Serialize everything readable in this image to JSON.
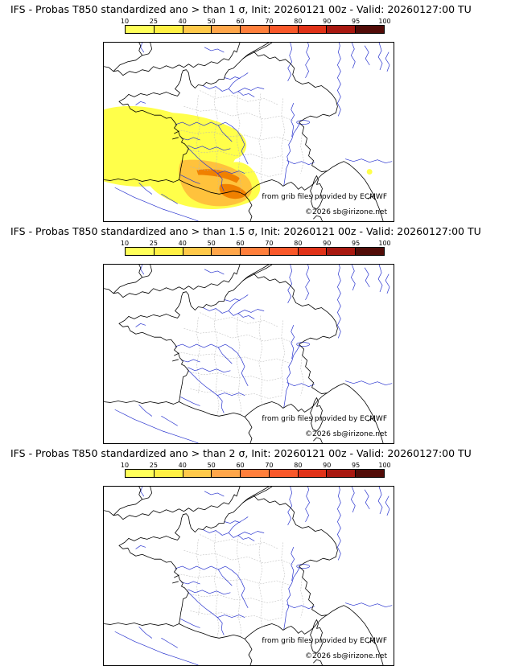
{
  "panels": [
    {
      "title": "IFS - Probas T850  standardized ano > than 1 σ, Init: 20260121 00z - Valid: 20260127:00 TU",
      "has_overlay": true
    },
    {
      "title": "IFS - Probas T850  standardized ano > than 1.5 σ, Init: 20260121 00z - Valid: 20260127:00 TU",
      "has_overlay": false
    },
    {
      "title": "IFS - Probas T850  standardized ano > than 2 σ, Init: 20260121 00z - Valid: 20260127:00 TU",
      "has_overlay": false
    }
  ],
  "colorbar": {
    "labels": [
      "10",
      "25",
      "40",
      "50",
      "60",
      "70",
      "80",
      "90",
      "95",
      "100"
    ],
    "colors": [
      "#ffff5a",
      "#fff044",
      "#ffc94a",
      "#ffa64a",
      "#ff7f3c",
      "#f9582a",
      "#e03218",
      "#a81810",
      "#520c08"
    ]
  },
  "attribution": {
    "line1": "from grib files provided by ECMWF",
    "line2": "©2026 sb@irizone.net"
  },
  "map_colors": {
    "coastline": "#000000",
    "rivers": "#2a35cf",
    "boundaries": "#b5b5b5"
  },
  "overlay_colors": {
    "low": "#ffff4a",
    "mid": "#ffc23c",
    "high": "#f08000"
  }
}
